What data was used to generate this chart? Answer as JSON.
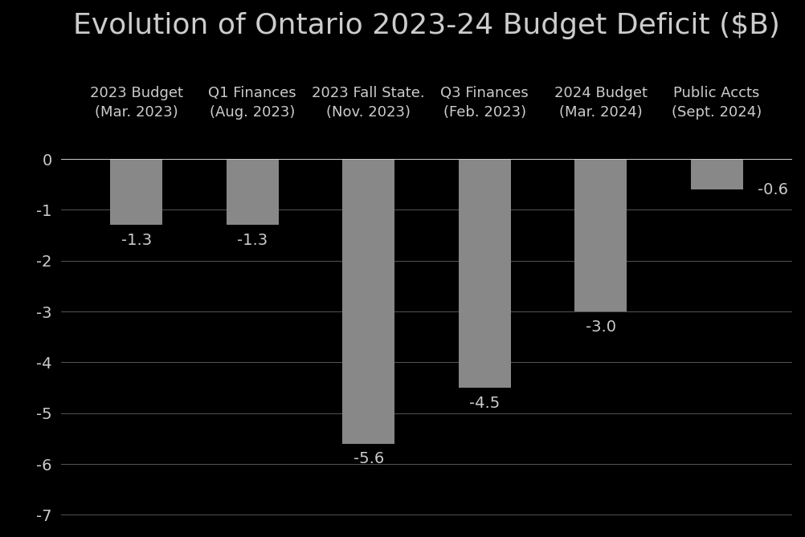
{
  "title": "Evolution of Ontario 2023-24 Budget Deficit ($B)",
  "categories": [
    "2023 Budget\n(Mar. 2023)",
    "Q1 Finances\n(Aug. 2023)",
    "2023 Fall State.\n(Nov. 2023)",
    "Q3 Finances\n(Feb. 2023)",
    "2024 Budget\n(Mar. 2024)",
    "Public Accts\n(Sept. 2024)"
  ],
  "values": [
    -1.3,
    -1.3,
    -5.6,
    -4.5,
    -3.0,
    -0.6
  ],
  "value_labels": [
    "-1.3",
    "-1.3",
    "-5.6",
    "-4.5",
    "-3.0",
    "-0.6"
  ],
  "label_offsets_x": [
    0,
    0,
    0,
    0,
    0,
    0.35
  ],
  "label_offsets_y": [
    -0.15,
    -0.15,
    -0.15,
    -0.15,
    -0.15,
    0
  ],
  "label_va": [
    "top",
    "top",
    "top",
    "top",
    "top",
    "center"
  ],
  "label_ha": [
    "center",
    "center",
    "center",
    "center",
    "center",
    "left"
  ],
  "bar_color": "#888888",
  "background_color": "#000000",
  "text_color": "#cccccc",
  "grid_color": "#555555",
  "ylim": [
    -7.2,
    0.6
  ],
  "yticks": [
    0,
    -1,
    -2,
    -3,
    -4,
    -5,
    -6,
    -7
  ],
  "title_fontsize": 26,
  "label_fontsize": 13,
  "tick_fontsize": 14,
  "value_label_fontsize": 14,
  "bar_width": 0.45
}
